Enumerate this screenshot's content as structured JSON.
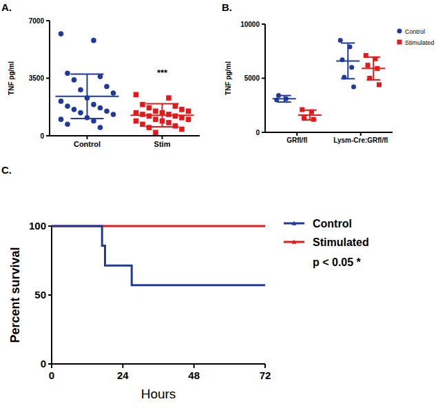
{
  "chart_data": [
    {
      "type": "dot_plot",
      "title": "A.",
      "y_label": "TNF pg/ml",
      "ylim": [
        0,
        7000
      ],
      "yticks": [
        0,
        3500,
        7000
      ],
      "series": [
        {
          "name": "Control",
          "color": "#1f3a9c",
          "marker": "circle",
          "values": [
            6200,
            5800,
            3800,
            3600,
            3400,
            3000,
            2800,
            2600,
            2300,
            2100,
            1900,
            1800,
            1700,
            1600,
            1500,
            1400,
            1300,
            1100,
            1000,
            900,
            700,
            500
          ],
          "mean": 2400,
          "sd": 1350
        },
        {
          "name": "Stim",
          "color": "#e31a1c",
          "marker": "square",
          "values": [
            2500,
            2300,
            1900,
            1800,
            1700,
            1600,
            1500,
            1500,
            1400,
            1400,
            1300,
            1300,
            1200,
            1200,
            1100,
            1000,
            1000,
            900,
            900,
            800,
            700,
            600,
            500,
            400,
            200
          ],
          "mean": 1250,
          "sd": 700
        }
      ],
      "annotations": [
        {
          "text": "***",
          "category": "Stim"
        }
      ]
    },
    {
      "type": "dot_plot",
      "title": "B.",
      "y_label": "TNF pg/ml",
      "ylim": [
        0,
        10000
      ],
      "yticks": [
        0,
        5000,
        10000
      ],
      "categories": [
        "GRfl/fl",
        "Lysm-Cre:GRfl/fl"
      ],
      "legend": "right",
      "series": [
        {
          "name": "Control",
          "color": "#1f3a9c",
          "marker": "circle",
          "values": [
            [
              3000,
              3100,
              3400
            ],
            [
              8500,
              7900,
              6700,
              6000,
              5100,
              4200
            ]
          ],
          "mean": [
            3100,
            6600
          ],
          "sd": [
            300,
            1650
          ]
        },
        {
          "name": "Stimulated",
          "color": "#e31a1c",
          "marker": "square",
          "values": [
            [
              2100,
              1900,
              1300,
              1200
            ],
            [
              7100,
              6800,
              6200,
              5900,
              5000,
              4400
            ]
          ],
          "mean": [
            1600,
            5900
          ],
          "sd": [
            450,
            1050
          ]
        }
      ]
    },
    {
      "type": "line",
      "line_style": "step",
      "title": "C.",
      "x_label": "Hours",
      "y_label": "Percent survival",
      "xlim": [
        0,
        72
      ],
      "xticks": [
        0,
        24,
        48,
        72
      ],
      "ylim": [
        0,
        100
      ],
      "yticks": [
        0,
        50,
        100
      ],
      "legend": "right",
      "series": [
        {
          "name": "Control",
          "color": "#1f3a9c",
          "marker": "triangle",
          "x": [
            0,
            17,
            18,
            27,
            72
          ],
          "values": [
            100,
            85.7,
            71.4,
            57.1,
            57.1
          ]
        },
        {
          "name": "Stimulated",
          "color": "#e31a1c",
          "marker": "triangle",
          "x": [
            0,
            72
          ],
          "values": [
            100,
            100
          ]
        }
      ],
      "annotations": [
        {
          "text": "p < 0.05 *"
        }
      ]
    }
  ]
}
